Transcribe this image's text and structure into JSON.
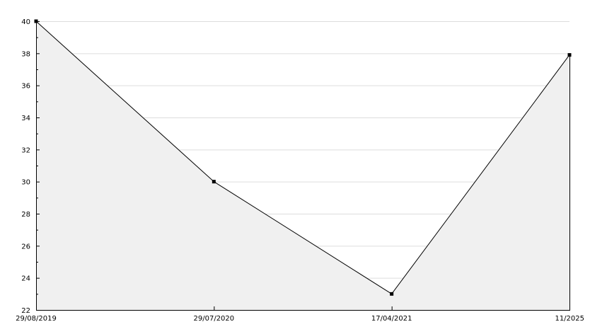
{
  "chart_data": {
    "type": "area",
    "title": "",
    "xlabel": "",
    "ylabel": "",
    "categories": [
      "29/08/2019",
      "29/07/2020",
      "17/04/2021",
      "11/2025"
    ],
    "values": [
      40,
      30,
      23,
      37.9
    ],
    "ylim": [
      22,
      40
    ],
    "yticks": [
      "22",
      "24",
      "26",
      "28",
      "30",
      "32",
      "34",
      "36",
      "38",
      "40"
    ],
    "grid": true,
    "legend": "none",
    "colors": {
      "line": "#000000",
      "fill": "#f0f0f0",
      "grid": "#dddddd",
      "axis": "#000000"
    }
  }
}
